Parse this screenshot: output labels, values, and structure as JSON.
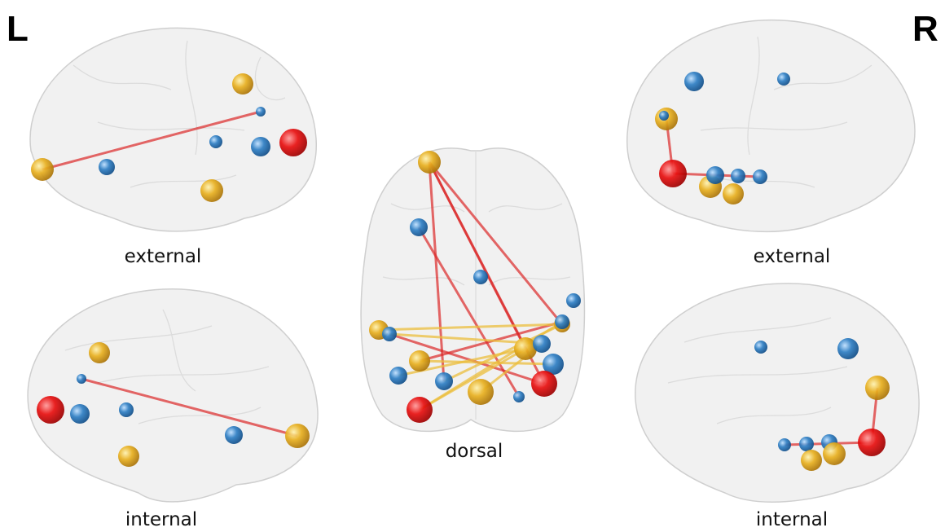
{
  "corners": {
    "left": "L",
    "right": "R"
  },
  "views": [
    {
      "label": "external"
    },
    {
      "label": "internal"
    },
    {
      "label": "dorsal"
    },
    {
      "label": "external"
    },
    {
      "label": "internal"
    }
  ]
}
